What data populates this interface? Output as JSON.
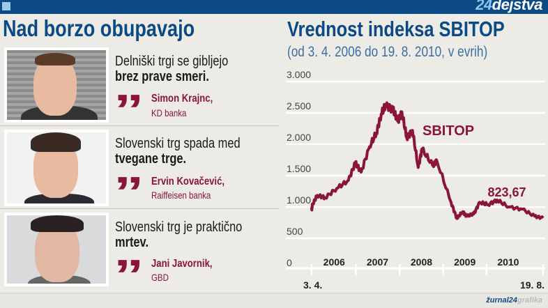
{
  "header": {
    "brand_number": "24",
    "brand_text": "dejstva"
  },
  "left": {
    "title": "Nad borzo obupavajo",
    "quotes": [
      {
        "line1": "Delniški trgi se gibljejo",
        "line2": "brez prave smeri.",
        "name": "Simon Krajnc,",
        "org": "KD banka"
      },
      {
        "line1": "Slovenski trg spada med",
        "line2": "tvegane trge.",
        "name": "Ervin Kovačević,",
        "org": "Raiffeisen banka"
      },
      {
        "line1": "Slovenski trg je praktično",
        "line2": "mrtev.",
        "name": "Jani Javornik,",
        "org": "GBD"
      }
    ],
    "quote_mark": "”"
  },
  "footer": {
    "logo_a": "žurnal24",
    "logo_b": "grafika"
  },
  "colors": {
    "blue": "#0b4a84",
    "accent": "#8a1538"
  },
  "chart_data": {
    "type": "line",
    "title": "Vrednost indeksa SBITOP",
    "subtitle": "(od 3. 4. 2006 do 19. 8. 2010, v evrih)",
    "series_label": "SBITOP",
    "last_value_label": "823,67",
    "ylim": [
      0,
      3000
    ],
    "yticks": [
      {
        "v": 0,
        "label": "0"
      },
      {
        "v": 500,
        "label": "500"
      },
      {
        "v": 1000,
        "label": "1.000"
      },
      {
        "v": 1500,
        "label": "1.500"
      },
      {
        "v": 2000,
        "label": "2.000"
      },
      {
        "v": 2500,
        "label": "2.500"
      },
      {
        "v": 3000,
        "label": "3.000"
      }
    ],
    "xlim": [
      2006.255,
      2010.63
    ],
    "year_labels": [
      {
        "x": 2006.68,
        "label": "2006"
      },
      {
        "x": 2007.5,
        "label": "2007"
      },
      {
        "x": 2008.33,
        "label": "2008"
      },
      {
        "x": 2009.15,
        "label": "2009"
      },
      {
        "x": 2009.97,
        "label": "2010"
      }
    ],
    "year_ticks": [
      2006.255,
      2007.09,
      2007.92,
      2008.74,
      2009.56,
      2010.63
    ],
    "start_label": "3. 4.",
    "end_label": "19. 8.",
    "grid": true,
    "x": [
      2006.255,
      2006.27,
      2006.36,
      2006.51,
      2006.73,
      2006.95,
      2007.08,
      2007.19,
      2007.35,
      2007.48,
      2007.57,
      2007.66,
      2007.79,
      2007.88,
      2007.96,
      2008.05,
      2008.16,
      2008.27,
      2008.34,
      2008.54,
      2008.62,
      2008.89,
      2009.0,
      2009.11,
      2009.19,
      2009.32,
      2009.43,
      2009.59,
      2009.76,
      2009.98,
      2010.24,
      2010.47,
      2010.63
    ],
    "values": [
      950,
      1037,
      1185,
      1148,
      1296,
      1425,
      1703,
      1555,
      1962,
      2184,
      2480,
      2628,
      2554,
      2369,
      2517,
      2110,
      2221,
      1629,
      1925,
      1666,
      1740,
      1074,
      815,
      926,
      852,
      889,
      1074,
      1037,
      1111,
      1000,
      963,
      852,
      824
    ]
  }
}
